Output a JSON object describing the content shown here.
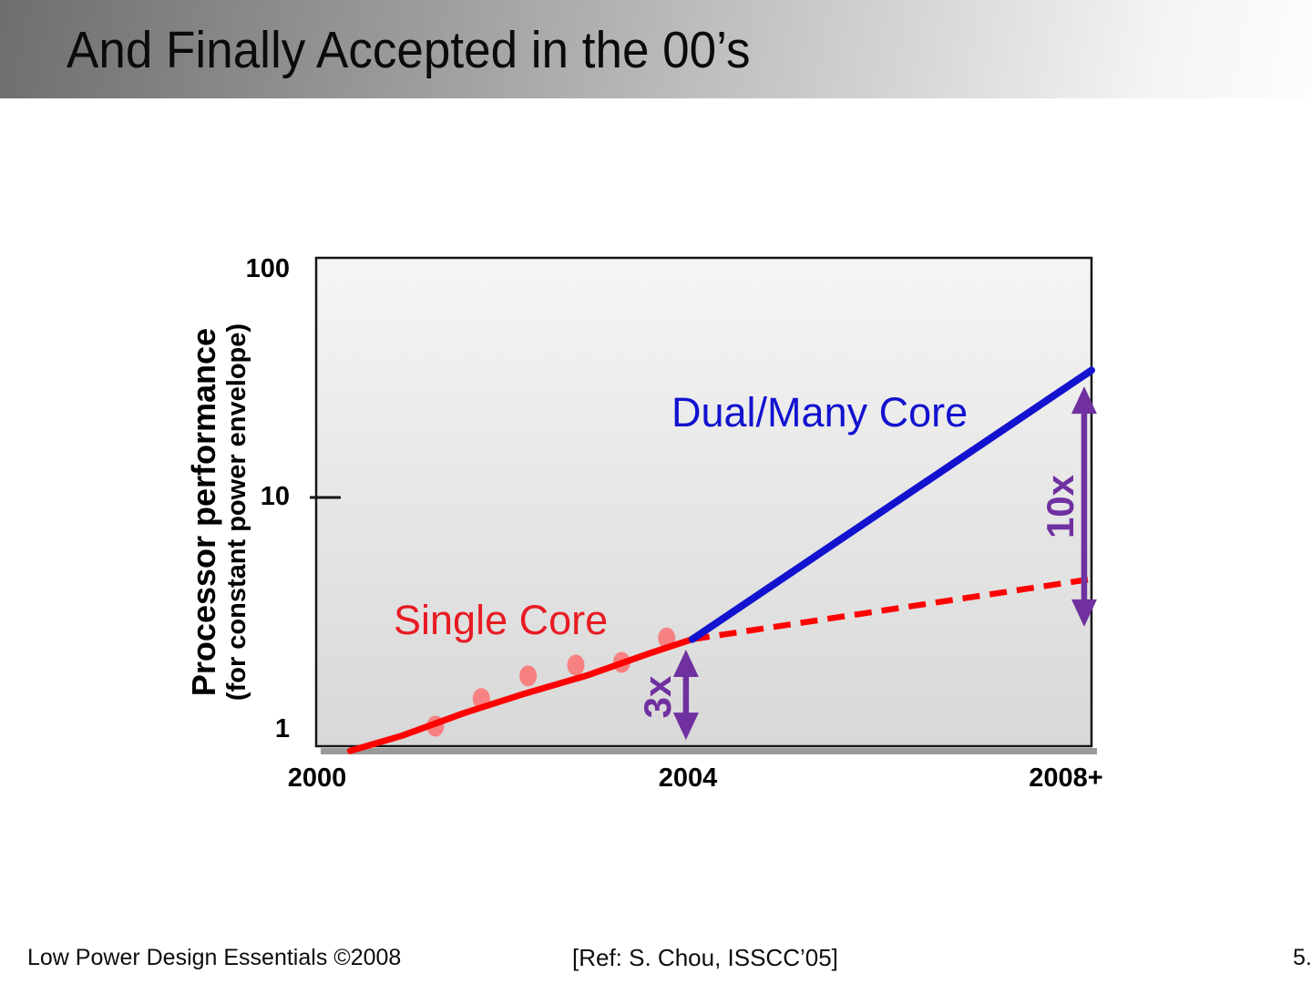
{
  "slide": {
    "title": "And Finally Accepted in the 00’s",
    "footer": {
      "left": "Low Power Design Essentials ©2008",
      "reference": "[Ref: S. Chou, ISSCC’05]",
      "page": "5."
    }
  },
  "chart_data": {
    "type": "line",
    "title": "",
    "ylabel": "Processor performance",
    "ylabel_sub": "(for constant power envelope)",
    "xlabel": "",
    "y_scale": "log",
    "y_range": [
      0.75,
      100
    ],
    "x_range": [
      2000,
      2008.45
    ],
    "grid": false,
    "legend": "none",
    "y_ticks": [
      {
        "label": "1",
        "value": 1
      },
      {
        "label": "10",
        "value": 10
      },
      {
        "label": "100",
        "value": 100
      }
    ],
    "x_ticks": [
      {
        "label": "2000",
        "year": 2000
      },
      {
        "label": "2004",
        "year": 2004
      },
      {
        "label": "2008+",
        "year": 2008.17
      }
    ],
    "series": [
      {
        "name": "single-core-measured-points",
        "type": "scatter",
        "color": "#f78181",
        "points": [
          [
            2001.3,
            1.0
          ],
          [
            2001.8,
            1.32
          ],
          [
            2002.31,
            1.66
          ],
          [
            2002.83,
            1.85
          ],
          [
            2003.33,
            1.9
          ],
          [
            2003.82,
            2.43
          ]
        ]
      },
      {
        "name": "single-core-trend",
        "type": "line",
        "style": "solid",
        "color": "#fe0202",
        "width": 7,
        "points": [
          [
            2000.37,
            0.78
          ],
          [
            2000.94,
            0.91
          ],
          [
            2001.61,
            1.14
          ],
          [
            2002.28,
            1.39
          ],
          [
            2002.96,
            1.67
          ],
          [
            2003.63,
            2.08
          ],
          [
            2004.1,
            2.4
          ]
        ]
      },
      {
        "name": "single-core-projection",
        "type": "line",
        "style": "dashed",
        "color": "#fe0202",
        "width": 6.5,
        "points": [
          [
            2004.1,
            2.4
          ],
          [
            2008.45,
            4.4
          ]
        ]
      },
      {
        "name": "dual-many-core",
        "type": "line",
        "style": "solid",
        "color": "#1212cf",
        "width": 8,
        "points": [
          [
            2004.1,
            2.4
          ],
          [
            2008.45,
            36
          ]
        ]
      }
    ],
    "annotations": {
      "single_core_label": {
        "text": "Single Core",
        "color": "#e81b23"
      },
      "dual_many_core_label": {
        "text": "Dual/Many Core",
        "color": "#1212cf"
      },
      "arrows": [
        {
          "label": "3x",
          "x": 2004.03,
          "v_top": 2.16,
          "v_bottom": 0.87,
          "color": "#7030a0"
        },
        {
          "label": "10x",
          "x": 2008.37,
          "v_top": 30.6,
          "v_bottom": 2.72,
          "color": "#7030a0"
        }
      ]
    }
  }
}
